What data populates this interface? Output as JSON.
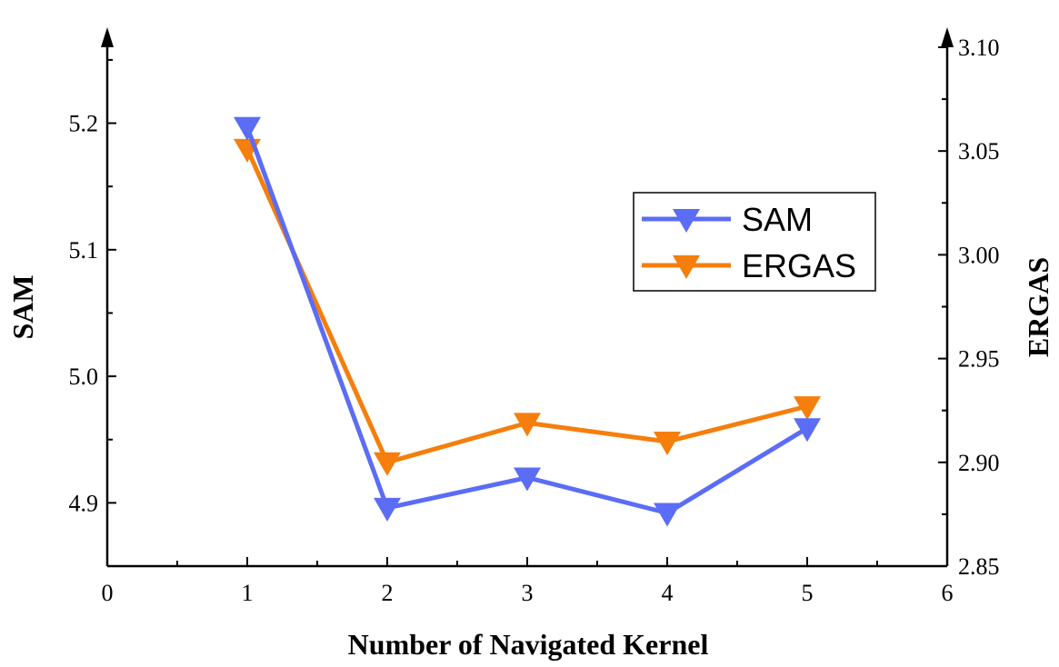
{
  "chart_data": {
    "type": "line",
    "xlabel": "Number of Navigated Kernel",
    "x": [
      1,
      2,
      3,
      4,
      5
    ],
    "xlim": [
      0,
      6
    ],
    "xticks": [
      "0",
      "1",
      "2",
      "3",
      "4",
      "5",
      "6"
    ],
    "ylabel_left": "SAM",
    "ylim_left": [
      4.85,
      5.26
    ],
    "yticks_left": [
      "4.9",
      "5.0",
      "5.1",
      "5.2"
    ],
    "ylabel_right": "ERGAS",
    "ylim_right": [
      2.85,
      3.1
    ],
    "yticks_right": [
      "2.85",
      "2.90",
      "2.95",
      "3.00",
      "3.05",
      "3.10"
    ],
    "series": [
      {
        "name": "SAM",
        "axis": "left",
        "color": "#5b6cf5",
        "marker": "triangle-down",
        "values": [
          5.197,
          4.896,
          4.92,
          4.892,
          4.959
        ]
      },
      {
        "name": "ERGAS",
        "axis": "right",
        "color": "#f57e0c",
        "marker": "triangle-down",
        "values": [
          3.051,
          2.9,
          2.919,
          2.91,
          2.927
        ]
      }
    ],
    "legend_position": "upper-right",
    "grid": false
  }
}
